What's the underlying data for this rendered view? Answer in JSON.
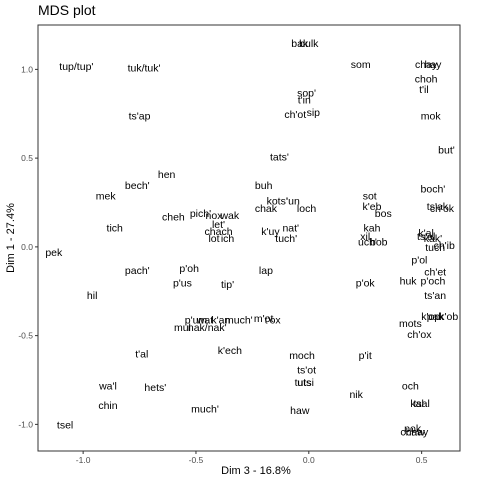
{
  "chart_data": {
    "type": "scatter",
    "title": "MDS plot",
    "xlabel": "Dim 3 - 16.8%",
    "ylabel": "Dim 1 - 27.4%",
    "xlim": [
      -1.2,
      0.67
    ],
    "ylim": [
      -1.15,
      1.25
    ],
    "xticks": [
      -1.0,
      -0.5,
      0.0,
      0.5
    ],
    "xtick_labels": [
      "-1.0",
      "-0.5",
      "0.0",
      "0.5"
    ],
    "yticks": [
      -1.0,
      -0.5,
      0.0,
      0.5,
      1.0
    ],
    "ytick_labels": [
      "-1.0",
      "-0.5",
      "0.0",
      "0.5",
      "1.0"
    ],
    "grid": false,
    "points": [
      {
        "label": "tup/tup'",
        "x": -1.03,
        "y": 1.02
      },
      {
        "label": "tuk/tuk'",
        "x": -0.73,
        "y": 1.01
      },
      {
        "label": "ts'ap",
        "x": -0.75,
        "y": 0.74
      },
      {
        "label": "hen",
        "x": -0.63,
        "y": 0.41
      },
      {
        "label": "bech'",
        "x": -0.76,
        "y": 0.35
      },
      {
        "label": "mek",
        "x": -0.9,
        "y": 0.29
      },
      {
        "label": "tich",
        "x": -0.86,
        "y": 0.11
      },
      {
        "label": "pek",
        "x": -1.13,
        "y": -0.03
      },
      {
        "label": "pach'",
        "x": -0.76,
        "y": -0.13
      },
      {
        "label": "hil",
        "x": -0.96,
        "y": -0.27
      },
      {
        "label": "cheh",
        "x": -0.6,
        "y": 0.17
      },
      {
        "label": "pich'",
        "x": -0.48,
        "y": 0.19
      },
      {
        "label": "nox",
        "x": -0.42,
        "y": 0.18
      },
      {
        "label": "wak",
        "x": -0.35,
        "y": 0.18
      },
      {
        "label": "let'",
        "x": -0.4,
        "y": 0.13
      },
      {
        "label": "chach",
        "x": -0.4,
        "y": 0.09
      },
      {
        "label": "lot",
        "x": -0.42,
        "y": 0.05
      },
      {
        "label": "ich",
        "x": -0.36,
        "y": 0.05
      },
      {
        "label": "buh",
        "x": -0.2,
        "y": 0.35
      },
      {
        "label": "kots'",
        "x": -0.14,
        "y": 0.26
      },
      {
        "label": "'un",
        "x": -0.07,
        "y": 0.26
      },
      {
        "label": "chak",
        "x": -0.19,
        "y": 0.22
      },
      {
        "label": "loch",
        "x": -0.01,
        "y": 0.22
      },
      {
        "label": "nat'",
        "x": -0.08,
        "y": 0.11
      },
      {
        "label": "k'uy",
        "x": -0.17,
        "y": 0.09
      },
      {
        "label": "tuch'",
        "x": -0.1,
        "y": 0.05
      },
      {
        "label": "tats'",
        "x": -0.13,
        "y": 0.51
      },
      {
        "label": "p'oh",
        "x": -0.53,
        "y": -0.12
      },
      {
        "label": "p'us",
        "x": -0.56,
        "y": -0.2
      },
      {
        "label": "tip'",
        "x": -0.36,
        "y": -0.21
      },
      {
        "label": "lap",
        "x": -0.19,
        "y": -0.13
      },
      {
        "label": "p'um",
        "x": -0.5,
        "y": -0.41
      },
      {
        "label": "wat",
        "x": -0.46,
        "y": -0.41
      },
      {
        "label": "k'an",
        "x": -0.39,
        "y": -0.41
      },
      {
        "label": "much'",
        "x": -0.31,
        "y": -0.41
      },
      {
        "label": "m'ot",
        "x": -0.2,
        "y": -0.4
      },
      {
        "label": "t'ox",
        "x": -0.16,
        "y": -0.41
      },
      {
        "label": "mul",
        "x": -0.56,
        "y": -0.45
      },
      {
        "label": "nak/nak'",
        "x": -0.45,
        "y": -0.45
      },
      {
        "label": "k'ech",
        "x": -0.35,
        "y": -0.58
      },
      {
        "label": "t'al",
        "x": -0.74,
        "y": -0.6
      },
      {
        "label": "wa'l",
        "x": -0.89,
        "y": -0.78
      },
      {
        "label": "hets'",
        "x": -0.68,
        "y": -0.79
      },
      {
        "label": "chin",
        "x": -0.89,
        "y": -0.89
      },
      {
        "label": "much'",
        "x": -0.46,
        "y": -0.91
      },
      {
        "label": "tsel",
        "x": -1.08,
        "y": -1.0
      },
      {
        "label": "moch",
        "x": -0.03,
        "y": -0.61
      },
      {
        "label": "ts'ot",
        "x": -0.01,
        "y": -0.69
      },
      {
        "label": "tutsi",
        "x": -0.02,
        "y": -0.76
      },
      {
        "label": "uts",
        "x": -0.02,
        "y": -0.76
      },
      {
        "label": "haw",
        "x": -0.04,
        "y": -0.92
      },
      {
        "label": "nik",
        "x": 0.21,
        "y": -0.83
      },
      {
        "label": "p'it",
        "x": 0.25,
        "y": -0.61
      },
      {
        "label": "bulk",
        "x": 0.0,
        "y": 1.15
      },
      {
        "label": "bak",
        "x": -0.04,
        "y": 1.15
      },
      {
        "label": "sop'",
        "x": -0.01,
        "y": 0.87
      },
      {
        "label": "t'in",
        "x": -0.02,
        "y": 0.83
      },
      {
        "label": "sip",
        "x": 0.02,
        "y": 0.76
      },
      {
        "label": "ch'ot",
        "x": -0.06,
        "y": 0.75
      },
      {
        "label": "som",
        "x": 0.23,
        "y": 1.03
      },
      {
        "label": "chay",
        "x": 0.52,
        "y": 1.03
      },
      {
        "label": "hay",
        "x": 0.55,
        "y": 1.03
      },
      {
        "label": "choh",
        "x": 0.52,
        "y": 0.95
      },
      {
        "label": "t'il",
        "x": 0.51,
        "y": 0.89
      },
      {
        "label": "mok",
        "x": 0.54,
        "y": 0.74
      },
      {
        "label": "but'",
        "x": 0.61,
        "y": 0.55
      },
      {
        "label": "boch'",
        "x": 0.55,
        "y": 0.33
      },
      {
        "label": "sot",
        "x": 0.27,
        "y": 0.29
      },
      {
        "label": "k'eb",
        "x": 0.28,
        "y": 0.23
      },
      {
        "label": "bos",
        "x": 0.33,
        "y": 0.19
      },
      {
        "label": "kah",
        "x": 0.28,
        "y": 0.11
      },
      {
        "label": "xil",
        "x": 0.25,
        "y": 0.06
      },
      {
        "label": "uch'",
        "x": 0.26,
        "y": 0.03
      },
      {
        "label": "bob",
        "x": 0.31,
        "y": 0.03
      },
      {
        "label": "ts'ak",
        "x": 0.57,
        "y": 0.23
      },
      {
        "label": "ch'ok",
        "x": 0.59,
        "y": 0.22
      },
      {
        "label": "k'al",
        "x": 0.52,
        "y": 0.08
      },
      {
        "label": "ts'al",
        "x": 0.52,
        "y": 0.06
      },
      {
        "label": "kak'",
        "x": 0.55,
        "y": 0.05
      },
      {
        "label": "ch'ib",
        "x": 0.6,
        "y": 0.01
      },
      {
        "label": "tuch",
        "x": 0.56,
        "y": 0.0
      },
      {
        "label": "p'ol",
        "x": 0.49,
        "y": -0.07
      },
      {
        "label": "ch'et",
        "x": 0.56,
        "y": -0.14
      },
      {
        "label": "huk",
        "x": 0.44,
        "y": -0.19
      },
      {
        "label": "p'och",
        "x": 0.55,
        "y": -0.19
      },
      {
        "label": "p'ok",
        "x": 0.25,
        "y": -0.2
      },
      {
        "label": "ts'an",
        "x": 0.56,
        "y": -0.27
      },
      {
        "label": "k'op",
        "x": 0.54,
        "y": -0.39
      },
      {
        "label": "pak",
        "x": 0.56,
        "y": -0.39
      },
      {
        "label": "k'ob",
        "x": 0.62,
        "y": -0.39
      },
      {
        "label": "mots",
        "x": 0.45,
        "y": -0.43
      },
      {
        "label": "ch'ox",
        "x": 0.49,
        "y": -0.49
      },
      {
        "label": "och",
        "x": 0.45,
        "y": -0.78
      },
      {
        "label": "kal",
        "x": 0.48,
        "y": -0.88
      },
      {
        "label": "tsal",
        "x": 0.5,
        "y": -0.88
      },
      {
        "label": "pok",
        "x": 0.46,
        "y": -1.02
      },
      {
        "label": "chaw",
        "x": 0.46,
        "y": -1.04
      },
      {
        "label": "chay",
        "x": 0.48,
        "y": -1.04
      }
    ]
  }
}
